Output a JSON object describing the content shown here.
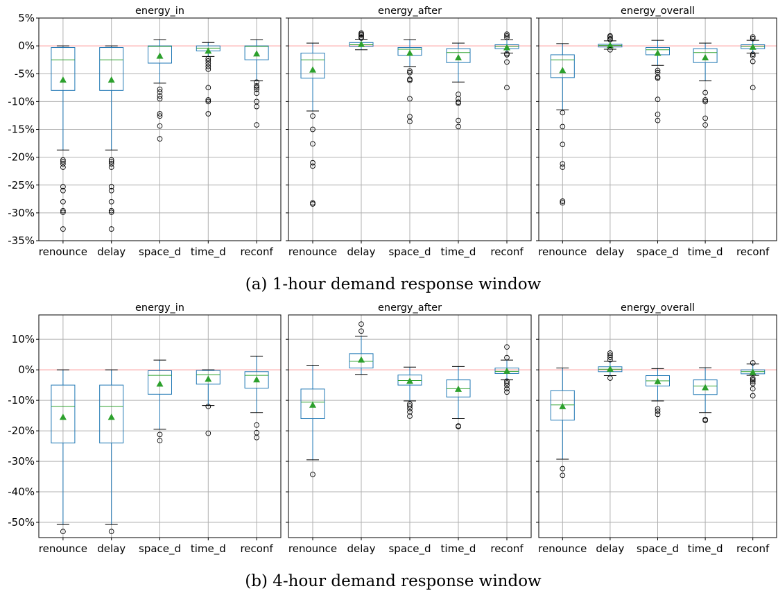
{
  "figure_captions": [
    "(a) 1-hour demand response window",
    "(b) 4-hour demand response window"
  ],
  "chart_data": [
    {
      "type": "box",
      "title": "energy_in",
      "caption": "(a) 1-hour demand response window",
      "categories": [
        "renounce",
        "delay",
        "space_d",
        "time_d",
        "reconf"
      ],
      "ylim": [
        -35,
        5
      ],
      "yticks": [
        "5%",
        "0%",
        "-5%",
        "-10%",
        "-15%",
        "-20%",
        "-25%",
        "-30%",
        "-35%"
      ],
      "reference_line": 0,
      "grid": true,
      "boxes": [
        {
          "q1": -8,
          "median": -2.5,
          "q3": -0.3,
          "whislo": -18.7,
          "whishi": 0,
          "mean": -6.1,
          "fliers": [
            -20.5,
            -20.8,
            -21.2,
            -21.8,
            -25.3,
            -26,
            -28,
            -29.6,
            -29.9,
            -32.9
          ]
        },
        {
          "q1": -8,
          "median": -2.5,
          "q3": -0.3,
          "whislo": -18.7,
          "whishi": 0,
          "mean": -6.1,
          "fliers": [
            -20.5,
            -20.8,
            -21.2,
            -21.8,
            -25.3,
            -26,
            -28,
            -29.6,
            -29.9,
            -32.9
          ]
        },
        {
          "q1": -3.1,
          "median": -0.1,
          "q3": 0,
          "whislo": -6.7,
          "whishi": 1.1,
          "mean": -1.8,
          "fliers": [
            -7.8,
            -8.3,
            -9,
            -9.5,
            -12.2,
            -12.6,
            -14.4,
            -16.7
          ]
        },
        {
          "q1": -0.9,
          "median": -0.4,
          "q3": 0,
          "whislo": -1.9,
          "whishi": 0.6,
          "mean": -0.9,
          "fliers": [
            -2.3,
            -2.7,
            -3.2,
            -3.7,
            -4.2,
            -7.5,
            -9.7,
            -10,
            -12.2
          ]
        },
        {
          "q1": -2.5,
          "median": -0.1,
          "q3": 0,
          "whislo": -6.3,
          "whishi": 1.1,
          "mean": -1.4,
          "fliers": [
            -6.5,
            -7.2,
            -7.5,
            -7.8,
            -8.5,
            -10,
            -10.9,
            -14.2
          ]
        }
      ]
    },
    {
      "type": "box",
      "title": "energy_after",
      "caption": "(a) 1-hour demand response window",
      "categories": [
        "renounce",
        "delay",
        "space_d",
        "time_d",
        "reconf"
      ],
      "ylim": [
        -35,
        5
      ],
      "reference_line": 0,
      "grid": true,
      "boxes": [
        {
          "q1": -5.8,
          "median": -2.5,
          "q3": -1.3,
          "whislo": -11.7,
          "whishi": 0.5,
          "mean": -4.3,
          "fliers": [
            -12.6,
            -15,
            -17.6,
            -21,
            -21.6,
            -28.2,
            -28.4
          ]
        },
        {
          "q1": -0.1,
          "median": 0.2,
          "q3": 0.6,
          "whislo": -0.7,
          "whishi": 1.2,
          "mean": 0.3,
          "fliers": [
            1.4,
            1.6,
            1.9,
            2.1,
            2.3
          ]
        },
        {
          "q1": -1.7,
          "median": -0.6,
          "q3": -0.3,
          "whislo": -3.7,
          "whishi": 1.1,
          "mean": -1.3,
          "fliers": [
            -4.5,
            -4.8,
            -6,
            -6.2,
            -9.5,
            -12.7,
            -13.6
          ]
        },
        {
          "q1": -3,
          "median": -1.2,
          "q3": -0.5,
          "whislo": -6.5,
          "whishi": 0.5,
          "mean": -2.1,
          "fliers": [
            -8.7,
            -9.5,
            -10.1,
            -10.3,
            -13.4,
            -14.5
          ]
        },
        {
          "q1": -0.5,
          "median": -0.1,
          "q3": 0.2,
          "whislo": -1.3,
          "whishi": 1.1,
          "mean": -0.3,
          "fliers": [
            -1.4,
            -1.6,
            -2.9,
            -7.5,
            1.5,
            1.8,
            2.1
          ]
        }
      ]
    },
    {
      "type": "box",
      "title": "energy_overall",
      "caption": "(a) 1-hour demand response window",
      "categories": [
        "renounce",
        "delay",
        "space_d",
        "time_d",
        "reconf"
      ],
      "ylim": [
        -35,
        5
      ],
      "reference_line": 0,
      "grid": true,
      "boxes": [
        {
          "q1": -5.7,
          "median": -2.5,
          "q3": -1.6,
          "whislo": -11.5,
          "whishi": 0.4,
          "mean": -4.4,
          "fliers": [
            -12,
            -14.5,
            -17.7,
            -21.2,
            -21.8,
            -27.9,
            -28.2
          ]
        },
        {
          "q1": -0.2,
          "median": 0.1,
          "q3": 0.3,
          "whislo": -0.6,
          "whishi": 0.9,
          "mean": 0.1,
          "fliers": [
            1.1,
            1.3,
            1.6,
            1.8,
            -0.7
          ]
        },
        {
          "q1": -1.6,
          "median": -0.7,
          "q3": -0.3,
          "whislo": -3.5,
          "whishi": 1,
          "mean": -1.3,
          "fliers": [
            -4.4,
            -4.8,
            -5.6,
            -5.8,
            -9.6,
            -12.3,
            -13.4
          ]
        },
        {
          "q1": -3,
          "median": -1.2,
          "q3": -0.5,
          "whislo": -6.3,
          "whishi": 0.5,
          "mean": -2.1,
          "fliers": [
            -8.4,
            -9.7,
            -10,
            -13,
            -14.2
          ]
        },
        {
          "q1": -0.5,
          "median": -0.1,
          "q3": 0.2,
          "whislo": -1.3,
          "whishi": 1,
          "mean": -0.2,
          "fliers": [
            -1.5,
            -1.8,
            -2.8,
            -7.5,
            1.3,
            1.6
          ]
        }
      ]
    },
    {
      "type": "box",
      "title": "energy_in",
      "caption": "(b) 4-hour demand response window",
      "categories": [
        "renounce",
        "delay",
        "space_d",
        "time_d",
        "reconf"
      ],
      "ylim": [
        -55,
        18
      ],
      "yticks": [
        "10%",
        "0%",
        "-10%",
        "-20%",
        "-30%",
        "-40%",
        "-50%"
      ],
      "reference_line": 0,
      "grid": true,
      "boxes": [
        {
          "q1": -24,
          "median": -12,
          "q3": -5,
          "whislo": -50.7,
          "whishi": 0,
          "mean": -15.5,
          "fliers": [
            -53
          ]
        },
        {
          "q1": -24,
          "median": -12,
          "q3": -5,
          "whislo": -50.7,
          "whishi": 0,
          "mean": -15.5,
          "fliers": [
            -53
          ]
        },
        {
          "q1": -8,
          "median": -1.8,
          "q3": -0.3,
          "whislo": -19.5,
          "whishi": 3.2,
          "mean": -4.6,
          "fliers": [
            -21.2,
            -23.2
          ]
        },
        {
          "q1": -4.7,
          "median": -1.6,
          "q3": -0.2,
          "whislo": -11.7,
          "whishi": 0,
          "mean": -3,
          "fliers": [
            -12,
            -20.8
          ]
        },
        {
          "q1": -6,
          "median": -1.8,
          "q3": -0.6,
          "whislo": -14,
          "whishi": 4.5,
          "mean": -3.2,
          "fliers": [
            -18.1,
            -20.6,
            -22.2
          ]
        }
      ]
    },
    {
      "type": "box",
      "title": "energy_after",
      "caption": "(b) 4-hour demand response window",
      "categories": [
        "renounce",
        "delay",
        "space_d",
        "time_d",
        "reconf"
      ],
      "ylim": [
        -55,
        18
      ],
      "reference_line": 0,
      "grid": true,
      "boxes": [
        {
          "q1": -16,
          "median": -10.6,
          "q3": -6.3,
          "whislo": -29.5,
          "whishi": 1.5,
          "mean": -11.5,
          "fliers": [
            -34.3
          ]
        },
        {
          "q1": 0.6,
          "median": 2.8,
          "q3": 5.3,
          "whislo": -1.5,
          "whishi": 11,
          "mean": 3.3,
          "fliers": [
            12.7,
            15
          ]
        },
        {
          "q1": -5,
          "median": -3.5,
          "q3": -1.7,
          "whislo": -10.2,
          "whishi": 0.9,
          "mean": -3.7,
          "fliers": [
            -11.2,
            -11.8,
            -12.7,
            -13.8,
            -15.2
          ]
        },
        {
          "q1": -8.9,
          "median": -6.2,
          "q3": -3.3,
          "whislo": -16,
          "whishi": 1.1,
          "mean": -6.3,
          "fliers": [
            -18.4,
            -18.6
          ]
        },
        {
          "q1": -1.2,
          "median": -0.5,
          "q3": 0.6,
          "whislo": -3.3,
          "whishi": 3.2,
          "mean": -0.4,
          "fliers": [
            -3.7,
            -4.3,
            -5.1,
            -6.2,
            -7.3,
            4,
            7.5
          ]
        }
      ]
    },
    {
      "type": "box",
      "title": "energy_overall",
      "caption": "(b) 4-hour demand response window",
      "categories": [
        "renounce",
        "delay",
        "space_d",
        "time_d",
        "reconf"
      ],
      "ylim": [
        -55,
        18
      ],
      "reference_line": 0,
      "grid": true,
      "boxes": [
        {
          "q1": -16.5,
          "median": -11.5,
          "q3": -6.8,
          "whislo": -29.3,
          "whishi": 0.6,
          "mean": -12,
          "fliers": [
            -32.4,
            -34.6
          ]
        },
        {
          "q1": -0.6,
          "median": 0.2,
          "q3": 1,
          "whislo": -1.9,
          "whishi": 2.8,
          "mean": 0.3,
          "fliers": [
            3.3,
            4.1,
            4.8,
            5.5,
            -2.7
          ]
        },
        {
          "q1": -5.3,
          "median": -3.6,
          "q3": -1.9,
          "whislo": -10.2,
          "whishi": 0.4,
          "mean": -3.8,
          "fliers": [
            -12.8,
            -13.6,
            -14.6
          ]
        },
        {
          "q1": -8.1,
          "median": -5.3,
          "q3": -3.3,
          "whislo": -14,
          "whishi": 0.7,
          "mean": -5.8,
          "fliers": [
            -16.3,
            -16.6
          ]
        },
        {
          "q1": -1.3,
          "median": -0.6,
          "q3": 0,
          "whislo": -1.8,
          "whishi": 1.9,
          "mean": -0.8,
          "fliers": [
            -2.8,
            -3.3,
            -3.8,
            -4.5,
            -6.2,
            -8.5,
            2.3
          ]
        }
      ]
    }
  ]
}
